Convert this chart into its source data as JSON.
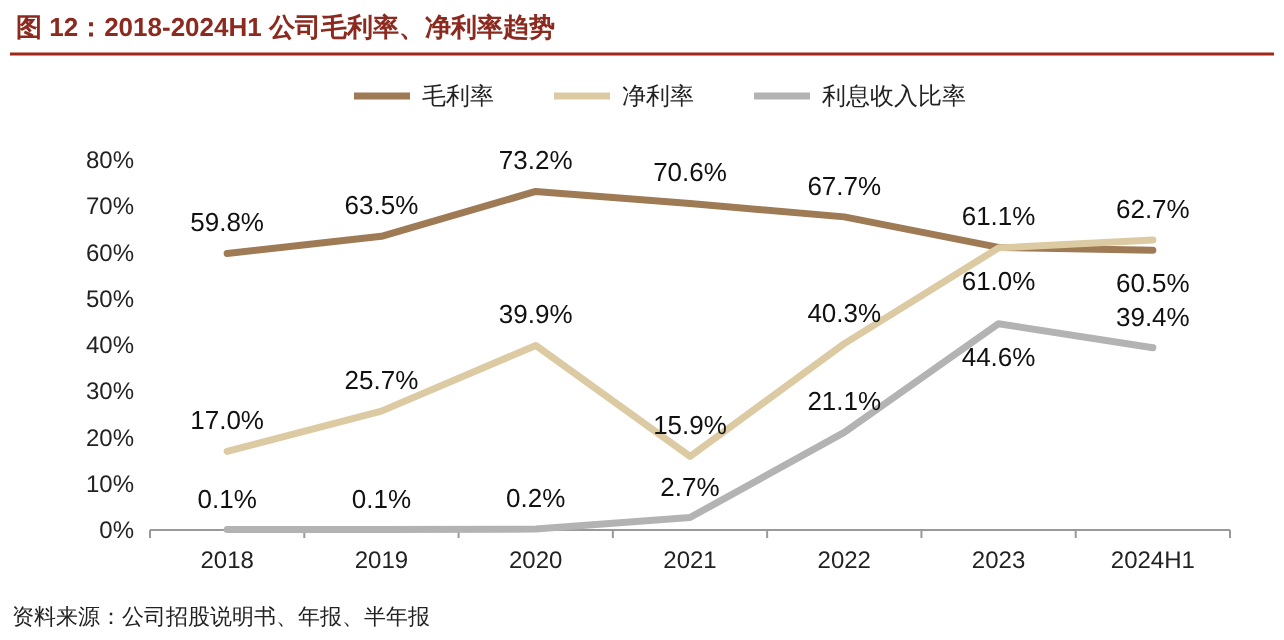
{
  "chart_data": {
    "type": "line",
    "title": "图 12：2018-2024H1 公司毛利率、净利率趋势",
    "categories": [
      "2018",
      "2019",
      "2020",
      "2021",
      "2022",
      "2023",
      "2024H1"
    ],
    "series": [
      {
        "name": "毛利率",
        "color": "#9e7a55",
        "values": [
          59.8,
          63.5,
          73.2,
          70.6,
          67.7,
          61.1,
          60.5
        ],
        "value_labels": [
          "59.8%",
          "63.5%",
          "73.2%",
          "70.6%",
          "67.7%",
          "61.1%",
          "60.5%"
        ]
      },
      {
        "name": "净利率",
        "color": "#dccaa3",
        "values": [
          17.0,
          25.7,
          39.9,
          15.9,
          40.3,
          61.0,
          62.7
        ],
        "value_labels": [
          "17.0%",
          "25.7%",
          "39.9%",
          "15.9%",
          "40.3%",
          "61.0%",
          "62.7%"
        ]
      },
      {
        "name": "利息收入比率",
        "color": "#b3b3b3",
        "values": [
          0.1,
          0.1,
          0.2,
          2.7,
          21.1,
          44.6,
          39.4
        ],
        "value_labels": [
          "0.1%",
          "0.1%",
          "0.2%",
          "2.7%",
          "21.1%",
          "44.6%",
          "39.4%"
        ]
      }
    ],
    "ylim": [
      0,
      80
    ],
    "yticks": [
      {
        "value": 0,
        "label": "0%"
      },
      {
        "value": 10,
        "label": "10%"
      },
      {
        "value": 20,
        "label": "20%"
      },
      {
        "value": 30,
        "label": "30%"
      },
      {
        "value": 40,
        "label": "40%"
      },
      {
        "value": 50,
        "label": "50%"
      },
      {
        "value": 60,
        "label": "60%"
      },
      {
        "value": 70,
        "label": "70%"
      },
      {
        "value": 80,
        "label": "80%"
      }
    ],
    "grid": false,
    "legend": "top",
    "marker": "none",
    "line_style": "solid",
    "annotations": [
      "资料来源：公司招股说明书、年报、半年报"
    ]
  }
}
